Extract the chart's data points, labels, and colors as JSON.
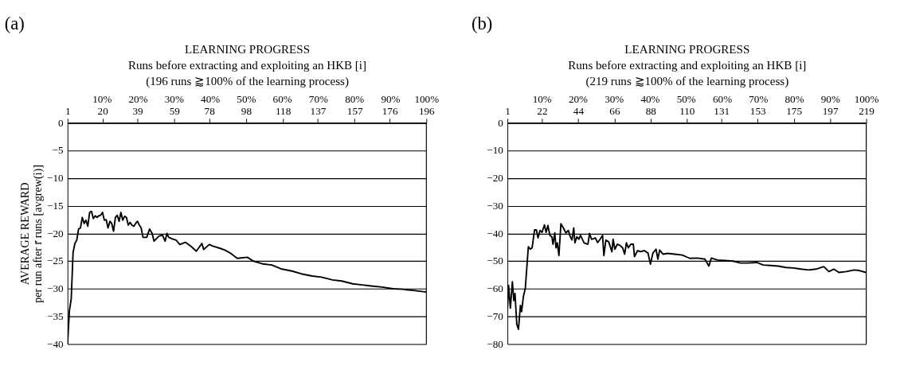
{
  "chart_data": [
    {
      "type": "line",
      "title": "(a)",
      "xlabel": "LEARNING PROGRESS\nRuns before extracting and exploiting an HKB [i]\n(196 runs ⪆100% of the learning process)",
      "ylabel": "AVERAGE REWARD\nper run after r̄ runs [avgrew(i)]",
      "xlim": [
        1,
        196
      ],
      "xticks": [
        1,
        20,
        39,
        59,
        78,
        98,
        118,
        137,
        157,
        176,
        196
      ],
      "x2lim": [
        0.5,
        100
      ],
      "x2ticks": [
        {
          "value": 10,
          "label": "10%"
        },
        {
          "value": 20,
          "label": "20%"
        },
        {
          "value": 30,
          "label": "30%"
        },
        {
          "value": 40,
          "label": "40%"
        },
        {
          "value": 50,
          "label": "50%"
        },
        {
          "value": 60,
          "label": "60%"
        },
        {
          "value": 70,
          "label": "70%"
        },
        {
          "value": 80,
          "label": "80%"
        },
        {
          "value": 90,
          "label": "90%"
        },
        {
          "value": 100,
          "label": "100%"
        }
      ],
      "ylim": [
        -40,
        0
      ],
      "yticks": [
        0,
        -5,
        -10,
        -15,
        -20,
        -25,
        -30,
        -35,
        -40
      ],
      "grid": "y",
      "series": [
        {
          "color": "#000000",
          "x": [
            1,
            2,
            3,
            4,
            5,
            6,
            7,
            8,
            9,
            10,
            11,
            12,
            13,
            14,
            15,
            16,
            17,
            18,
            19,
            20,
            21,
            22,
            23,
            24,
            25,
            26,
            27,
            28,
            29,
            30,
            31,
            32,
            33,
            34,
            35,
            36,
            37,
            38,
            39,
            40,
            41,
            42,
            44,
            45.6,
            47,
            48,
            50.6,
            52.6,
            54,
            55,
            56,
            58,
            60,
            62,
            65,
            68,
            71,
            74,
            75,
            78,
            80,
            84,
            86.5,
            89.7,
            93.2,
            98.7,
            102,
            107,
            112,
            117,
            123,
            128,
            134,
            139,
            145,
            150,
            156,
            161,
            166,
            172,
            178,
            183,
            189,
            196
          ],
          "values": [
            -40,
            -34,
            -31.8,
            -23.4,
            -21.8,
            -21.2,
            -19.2,
            -19,
            -17.1,
            -18.2,
            -17.6,
            -18.7,
            -16.2,
            -16,
            -17.3,
            -16.8,
            -17.1,
            -16.8,
            -16.7,
            -16.2,
            -17.6,
            -17.5,
            -19,
            -17.8,
            -18.2,
            -19.6,
            -17.1,
            -16.7,
            -17.8,
            -16.2,
            -17.6,
            -16.9,
            -17.1,
            -18.5,
            -18,
            -18.5,
            -18.7,
            -18.2,
            -17.8,
            -18.5,
            -19,
            -20.7,
            -20.7,
            -19.2,
            -20,
            -21.4,
            -20.5,
            -20.3,
            -21.4,
            -20,
            -20.7,
            -21,
            -21.2,
            -22,
            -21.6,
            -22.3,
            -23.2,
            -21.8,
            -22.9,
            -22,
            -22.3,
            -22.7,
            -23,
            -23.6,
            -24.5,
            -24.3,
            -25,
            -25.5,
            -25.7,
            -26.4,
            -26.8,
            -27.3,
            -27.7,
            -27.9,
            -28.4,
            -28.6,
            -29.1,
            -29.3,
            -29.5,
            -29.7,
            -30,
            -30.1,
            -30.3,
            -30.6
          ]
        }
      ]
    },
    {
      "type": "line",
      "title": "(b)",
      "xlabel": "LEARNING PROGRESS\nRuns before extracting and exploiting an HKB [i]\n(219 runs ⪆100% of the learning process)",
      "xlim": [
        1,
        219
      ],
      "xticks": [
        1,
        22,
        44,
        66,
        88,
        110,
        131,
        153,
        175,
        197,
        219
      ],
      "x2lim": [
        0.46,
        100
      ],
      "x2ticks": [
        {
          "value": 10,
          "label": "10%"
        },
        {
          "value": 20,
          "label": "20%"
        },
        {
          "value": 30,
          "label": "30%"
        },
        {
          "value": 40,
          "label": "40%"
        },
        {
          "value": 50,
          "label": "50%"
        },
        {
          "value": 60,
          "label": "60%"
        },
        {
          "value": 70,
          "label": "70%"
        },
        {
          "value": 80,
          "label": "80%"
        },
        {
          "value": 90,
          "label": "90%"
        },
        {
          "value": 100,
          "label": "100%"
        }
      ],
      "ylim": [
        -80,
        0
      ],
      "yticks": [
        0,
        -10,
        -20,
        -30,
        -40,
        -50,
        -60,
        -70,
        -80
      ],
      "grid": "y",
      "series": [
        {
          "color": "#000000",
          "x": [
            1,
            1.7,
            2.8,
            4,
            4.9,
            5.6,
            6.7,
            7.7,
            8.9,
            9.6,
            10.7,
            11.9,
            13.7,
            14.9,
            16,
            17.5,
            18.6,
            19.6,
            20.8,
            22,
            23.5,
            24.5,
            25.6,
            26.8,
            28,
            28.7,
            29.8,
            30.5,
            31.3,
            32.3,
            33.5,
            35,
            36.5,
            38,
            39.2,
            40.2,
            41.3,
            42,
            43.2,
            44.4,
            45.4,
            47.6,
            49.9,
            50.9,
            52.1,
            54.4,
            55.8,
            57.3,
            58.8,
            59.6,
            60.8,
            62.5,
            64.5,
            65.2,
            66.3,
            67.8,
            69.3,
            71,
            72.2,
            73.3,
            74.5,
            76,
            77.5,
            78.2,
            80.1,
            81.9,
            84.2,
            86.4,
            87.9,
            89.4,
            91.3,
            92.4,
            93.5,
            95.6,
            98.3,
            102.6,
            107.2,
            111.8,
            116.4,
            121,
            123.4,
            124.9,
            128.7,
            133.3,
            138,
            142.5,
            147.2,
            152.5,
            156.4,
            161,
            165.6,
            170.2,
            174.8,
            179.4,
            184,
            188.6,
            193.2,
            196.3,
            199.3,
            202.4,
            207,
            211.6,
            214.7,
            219
          ],
          "values": [
            -67.4,
            -58.8,
            -67,
            -57.5,
            -64.3,
            -61.7,
            -72.9,
            -74.7,
            -66,
            -68.3,
            -62.9,
            -59.7,
            -44.8,
            -45.7,
            -45.2,
            -38.7,
            -38.7,
            -41.6,
            -38.9,
            -39.6,
            -36.9,
            -39.6,
            -37.1,
            -40.7,
            -41.2,
            -43.9,
            -39.8,
            -45.2,
            -43.4,
            -48,
            -36.5,
            -38,
            -39.8,
            -38.9,
            -41.2,
            -42.3,
            -38,
            -43.4,
            -41.2,
            -42.1,
            -40.7,
            -43.4,
            -43.9,
            -40,
            -42.1,
            -41.6,
            -43.3,
            -42.1,
            -40.7,
            -48,
            -42.4,
            -43,
            -46.6,
            -42.1,
            -45.7,
            -43.9,
            -44.3,
            -45.2,
            -47.5,
            -43.4,
            -45.2,
            -43.9,
            -43.9,
            -48.4,
            -46.2,
            -46.6,
            -46.2,
            -47.1,
            -51.1,
            -47.1,
            -45.7,
            -49.3,
            -46,
            -47.5,
            -47.2,
            -47.5,
            -47.8,
            -49,
            -48.9,
            -49.3,
            -51.8,
            -48.9,
            -49.6,
            -49.8,
            -50,
            -50.7,
            -50.7,
            -50.5,
            -51.4,
            -51.6,
            -51.8,
            -52.3,
            -52.5,
            -52.9,
            -53.2,
            -52.9,
            -52,
            -53.8,
            -52.9,
            -54.1,
            -53.8,
            -53.2,
            -53.4,
            -54.1
          ]
        }
      ]
    }
  ]
}
